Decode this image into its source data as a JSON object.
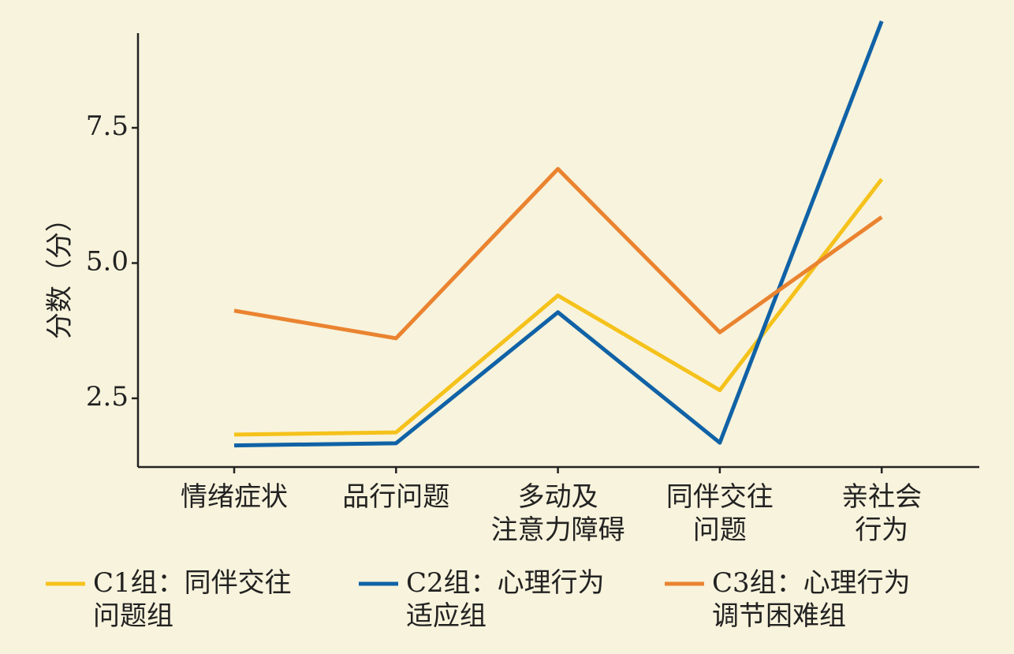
{
  "chart_data": {
    "type": "line",
    "y_label": "分数（分）",
    "categories": [
      "情绪症状",
      "品行问题",
      "多动及\n注意力障碍",
      "同伴交往\n问题",
      "亲社会\n行为"
    ],
    "series": [
      {
        "name": "C1组：同伴交往\n问题组",
        "color": "#f5c21b",
        "values": [
          1.83,
          1.87,
          4.4,
          2.65,
          6.55
        ]
      },
      {
        "name": "C2组：心理行为\n适应组",
        "color": "#1062a6",
        "values": [
          1.63,
          1.67,
          4.09,
          1.68,
          9.47
        ]
      },
      {
        "name": "C3组：心理行为\n调节困难组",
        "color": "#ea8330",
        "values": [
          4.12,
          3.61,
          6.74,
          3.72,
          5.85
        ]
      }
    ],
    "ylim": [
      1.23,
      9.25
    ],
    "yticks": [
      2.5,
      {
        "value": 5,
        "label": "5.0"
      },
      {
        "value": 7.5,
        "label": "7.5"
      }
    ]
  }
}
